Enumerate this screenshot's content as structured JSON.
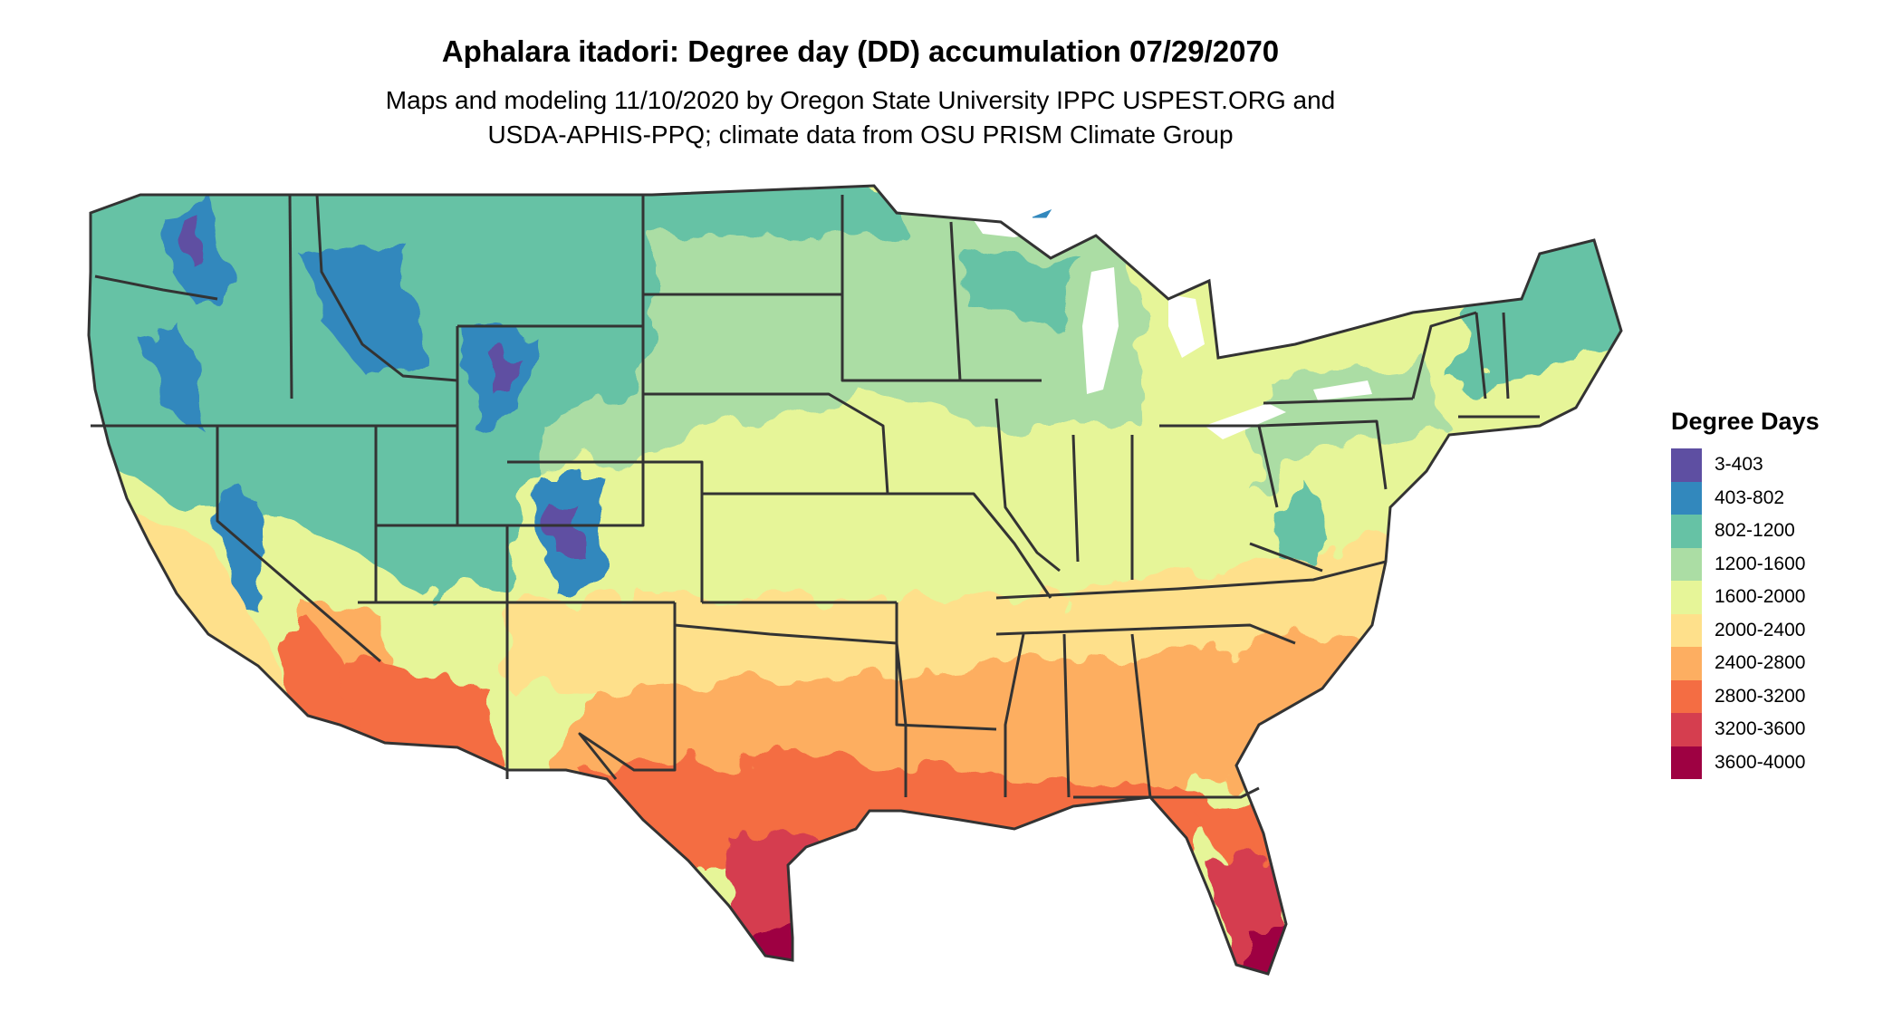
{
  "header": {
    "title": "Aphalara itadori: Degree day (DD) accumulation 07/29/2070",
    "subtitle_line1": "Maps and modeling 11/10/2020 by Oregon State University IPPC USPEST.ORG and",
    "subtitle_line2": "USDA-APHIS-PPQ; climate data from OSU PRISM Climate Group"
  },
  "legend": {
    "title": "Degree Days",
    "items": [
      {
        "label": "3-403",
        "color": "#5e4fa2"
      },
      {
        "label": "403-802",
        "color": "#3288bd"
      },
      {
        "label": "802-1200",
        "color": "#66c2a5"
      },
      {
        "label": "1200-1600",
        "color": "#abdda4"
      },
      {
        "label": "1600-2000",
        "color": "#e6f598"
      },
      {
        "label": "2000-2400",
        "color": "#fee08b"
      },
      {
        "label": "2400-2800",
        "color": "#fdae61"
      },
      {
        "label": "2800-3200",
        "color": "#f46d43"
      },
      {
        "label": "3200-3600",
        "color": "#d53e4f"
      },
      {
        "label": "3600-4000",
        "color": "#9e0142"
      }
    ]
  },
  "map": {
    "region": "contiguous-united-states",
    "boundary_color": "#333333"
  }
}
